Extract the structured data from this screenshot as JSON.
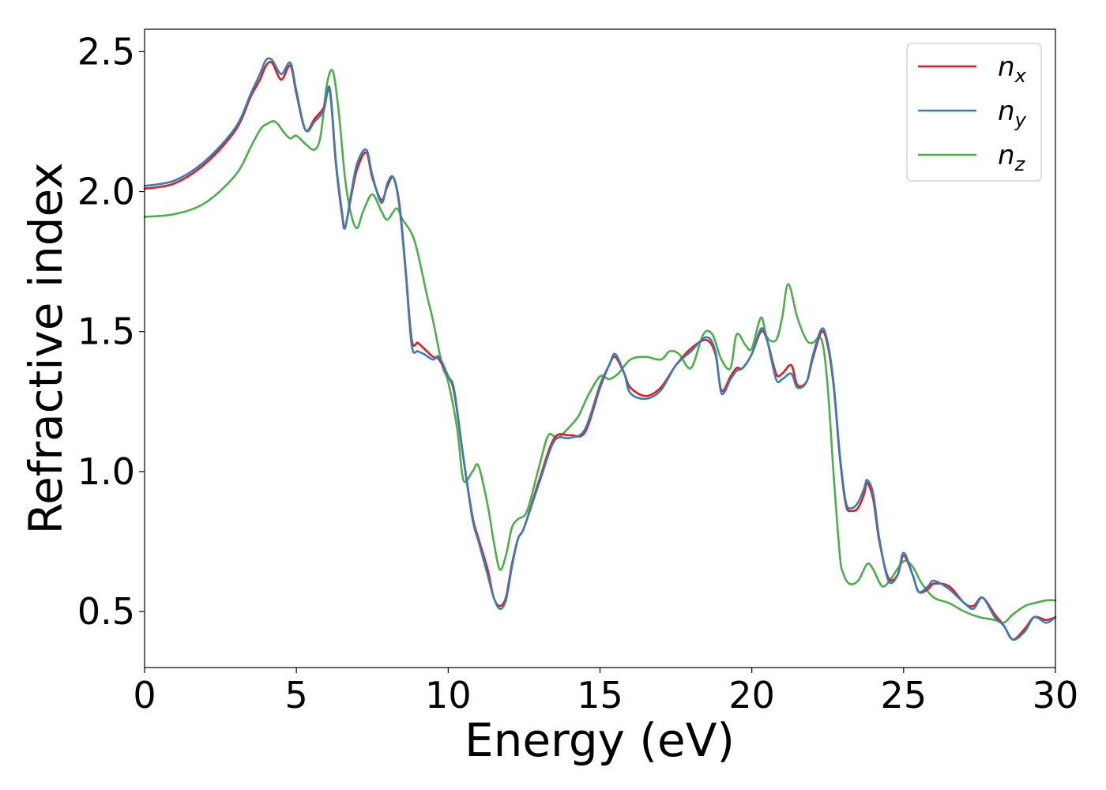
{
  "chart_data": {
    "type": "line",
    "title": "",
    "xlabel": "Energy (eV)",
    "ylabel": "Refractive index",
    "xlim": [
      0,
      30
    ],
    "ylim": [
      0.3,
      2.58
    ],
    "xticks": [
      0,
      5,
      10,
      15,
      20,
      25,
      30
    ],
    "xtick_labels": [
      "0",
      "5",
      "10",
      "15",
      "20",
      "25",
      "30"
    ],
    "yticks": [
      0.5,
      1.0,
      1.5,
      2.0,
      2.5
    ],
    "ytick_labels": [
      "0.5",
      "1.0",
      "1.5",
      "2.0",
      "2.5"
    ],
    "grid": false,
    "legend_position": "top-right",
    "series": [
      {
        "name": "n_x",
        "label_base": "n",
        "label_sub": "x",
        "color": "#e41a1c",
        "x": [
          0,
          1,
          2,
          3,
          3.5,
          3.8,
          4.0,
          4.2,
          4.5,
          4.8,
          5.0,
          5.3,
          5.6,
          5.9,
          6.1,
          6.3,
          6.5,
          6.6,
          6.8,
          7.0,
          7.3,
          7.5,
          7.8,
          8.0,
          8.2,
          8.4,
          8.6,
          8.8,
          9.0,
          9.2,
          9.5,
          9.7,
          10.0,
          10.2,
          10.5,
          10.8,
          11.0,
          11.3,
          11.5,
          11.7,
          11.9,
          12.1,
          12.3,
          12.5,
          13.0,
          13.5,
          14.0,
          14.5,
          15.0,
          15.3,
          15.5,
          15.8,
          16.0,
          16.5,
          17.0,
          17.5,
          18.0,
          18.5,
          18.8,
          19.0,
          19.3,
          19.5,
          19.7,
          20.0,
          20.3,
          20.5,
          20.8,
          21.0,
          21.3,
          21.5,
          21.8,
          22.0,
          22.3,
          22.5,
          22.7,
          22.9,
          23.1,
          23.3,
          23.5,
          23.7,
          23.8,
          24.0,
          24.2,
          24.5,
          24.8,
          25.0,
          25.3,
          25.5,
          25.8,
          26.0,
          26.5,
          27.0,
          27.3,
          27.6,
          28.0,
          28.3,
          28.6,
          29.0,
          29.3,
          29.7,
          30.0
        ],
        "y": [
          2.01,
          2.03,
          2.1,
          2.22,
          2.34,
          2.4,
          2.45,
          2.46,
          2.4,
          2.45,
          2.35,
          2.22,
          2.26,
          2.3,
          2.36,
          2.1,
          1.92,
          1.87,
          1.98,
          2.08,
          2.14,
          2.05,
          1.97,
          2.02,
          2.05,
          1.95,
          1.72,
          1.47,
          1.46,
          1.44,
          1.41,
          1.4,
          1.34,
          1.28,
          1.05,
          0.84,
          0.76,
          0.65,
          0.55,
          0.52,
          0.55,
          0.67,
          0.76,
          0.8,
          0.97,
          1.12,
          1.13,
          1.14,
          1.3,
          1.38,
          1.41,
          1.35,
          1.3,
          1.27,
          1.3,
          1.38,
          1.44,
          1.47,
          1.42,
          1.29,
          1.34,
          1.37,
          1.37,
          1.42,
          1.5,
          1.47,
          1.35,
          1.35,
          1.38,
          1.31,
          1.32,
          1.4,
          1.5,
          1.45,
          1.3,
          1.05,
          0.88,
          0.86,
          0.87,
          0.92,
          0.96,
          0.9,
          0.75,
          0.62,
          0.63,
          0.7,
          0.63,
          0.57,
          0.58,
          0.6,
          0.59,
          0.53,
          0.52,
          0.55,
          0.49,
          0.45,
          0.4,
          0.44,
          0.48,
          0.47,
          0.48
        ]
      },
      {
        "name": "n_y",
        "label_base": "n",
        "label_sub": "y",
        "color": "#377eb8",
        "x": [
          0,
          1,
          2,
          3,
          3.5,
          3.8,
          4.0,
          4.2,
          4.5,
          4.8,
          5.0,
          5.3,
          5.6,
          5.9,
          6.1,
          6.3,
          6.5,
          6.6,
          6.8,
          7.0,
          7.3,
          7.5,
          7.8,
          8.0,
          8.2,
          8.4,
          8.6,
          8.8,
          9.0,
          9.2,
          9.5,
          9.7,
          10.0,
          10.2,
          10.5,
          10.8,
          11.0,
          11.3,
          11.5,
          11.7,
          11.9,
          12.1,
          12.3,
          12.5,
          13.0,
          13.5,
          14.0,
          14.5,
          15.0,
          15.3,
          15.5,
          15.8,
          16.0,
          16.5,
          17.0,
          17.5,
          18.0,
          18.5,
          18.8,
          19.0,
          19.3,
          19.5,
          19.7,
          20.0,
          20.3,
          20.5,
          20.8,
          21.0,
          21.3,
          21.5,
          21.8,
          22.0,
          22.3,
          22.5,
          22.7,
          22.9,
          23.1,
          23.3,
          23.5,
          23.7,
          23.8,
          24.0,
          24.2,
          24.5,
          24.8,
          25.0,
          25.3,
          25.5,
          25.8,
          26.0,
          26.5,
          27.0,
          27.3,
          27.6,
          28.0,
          28.3,
          28.6,
          29.0,
          29.3,
          29.7,
          30.0
        ],
        "y": [
          2.02,
          2.04,
          2.11,
          2.23,
          2.35,
          2.42,
          2.47,
          2.47,
          2.42,
          2.46,
          2.36,
          2.22,
          2.25,
          2.29,
          2.37,
          2.11,
          1.93,
          1.87,
          1.99,
          2.1,
          2.15,
          2.06,
          1.96,
          2.03,
          2.05,
          1.94,
          1.71,
          1.45,
          1.43,
          1.42,
          1.4,
          1.41,
          1.34,
          1.29,
          1.05,
          0.83,
          0.75,
          0.63,
          0.55,
          0.51,
          0.54,
          0.66,
          0.76,
          0.8,
          0.96,
          1.11,
          1.12,
          1.15,
          1.31,
          1.38,
          1.42,
          1.35,
          1.28,
          1.26,
          1.29,
          1.38,
          1.43,
          1.48,
          1.43,
          1.28,
          1.33,
          1.36,
          1.37,
          1.42,
          1.51,
          1.47,
          1.33,
          1.33,
          1.35,
          1.3,
          1.32,
          1.41,
          1.51,
          1.46,
          1.31,
          1.06,
          0.89,
          0.87,
          0.89,
          0.94,
          0.97,
          0.92,
          0.76,
          0.61,
          0.63,
          0.71,
          0.63,
          0.57,
          0.59,
          0.61,
          0.58,
          0.53,
          0.51,
          0.55,
          0.48,
          0.45,
          0.4,
          0.43,
          0.48,
          0.46,
          0.48
        ]
      },
      {
        "name": "n_z",
        "label_base": "n",
        "label_sub": "z",
        "color": "#4daf4a",
        "x": [
          0,
          1,
          2,
          3,
          3.5,
          3.8,
          4.0,
          4.3,
          4.6,
          4.8,
          5.0,
          5.3,
          5.6,
          5.8,
          6.0,
          6.2,
          6.4,
          6.6,
          6.8,
          7.0,
          7.2,
          7.5,
          7.8,
          8.0,
          8.3,
          8.5,
          8.8,
          9.0,
          9.3,
          9.5,
          9.8,
          10.0,
          10.3,
          10.5,
          10.8,
          11.0,
          11.3,
          11.5,
          11.7,
          11.9,
          12.1,
          12.3,
          12.6,
          13.0,
          13.3,
          13.6,
          14.0,
          14.3,
          14.6,
          15.0,
          15.3,
          15.6,
          16.0,
          16.5,
          17.0,
          17.3,
          17.6,
          18.0,
          18.4,
          18.7,
          19.0,
          19.3,
          19.5,
          19.8,
          20.0,
          20.3,
          20.5,
          20.8,
          21.0,
          21.2,
          21.5,
          21.8,
          22.0,
          22.3,
          22.5,
          22.7,
          22.9,
          23.0,
          23.2,
          23.5,
          23.8,
          24.0,
          24.3,
          24.6,
          25.0,
          25.3,
          25.6,
          26.0,
          26.5,
          27.0,
          27.5,
          28.0,
          28.3,
          28.6,
          29.0,
          29.3,
          29.7,
          30.0
        ],
        "y": [
          1.91,
          1.92,
          1.96,
          2.06,
          2.16,
          2.22,
          2.24,
          2.25,
          2.21,
          2.19,
          2.2,
          2.17,
          2.15,
          2.2,
          2.38,
          2.43,
          2.28,
          2.05,
          1.92,
          1.87,
          1.93,
          1.99,
          1.93,
          1.9,
          1.94,
          1.9,
          1.85,
          1.78,
          1.63,
          1.54,
          1.38,
          1.32,
          1.15,
          0.97,
          1.0,
          1.02,
          0.88,
          0.75,
          0.65,
          0.7,
          0.8,
          0.83,
          0.86,
          1.02,
          1.13,
          1.12,
          1.16,
          1.2,
          1.27,
          1.34,
          1.33,
          1.35,
          1.4,
          1.41,
          1.4,
          1.43,
          1.42,
          1.37,
          1.49,
          1.49,
          1.4,
          1.37,
          1.49,
          1.45,
          1.44,
          1.55,
          1.48,
          1.47,
          1.55,
          1.67,
          1.55,
          1.47,
          1.46,
          1.47,
          1.3,
          0.98,
          0.7,
          0.64,
          0.6,
          0.61,
          0.67,
          0.65,
          0.59,
          0.62,
          0.68,
          0.66,
          0.6,
          0.55,
          0.53,
          0.5,
          0.48,
          0.47,
          0.46,
          0.49,
          0.52,
          0.53,
          0.54,
          0.54
        ]
      }
    ]
  }
}
